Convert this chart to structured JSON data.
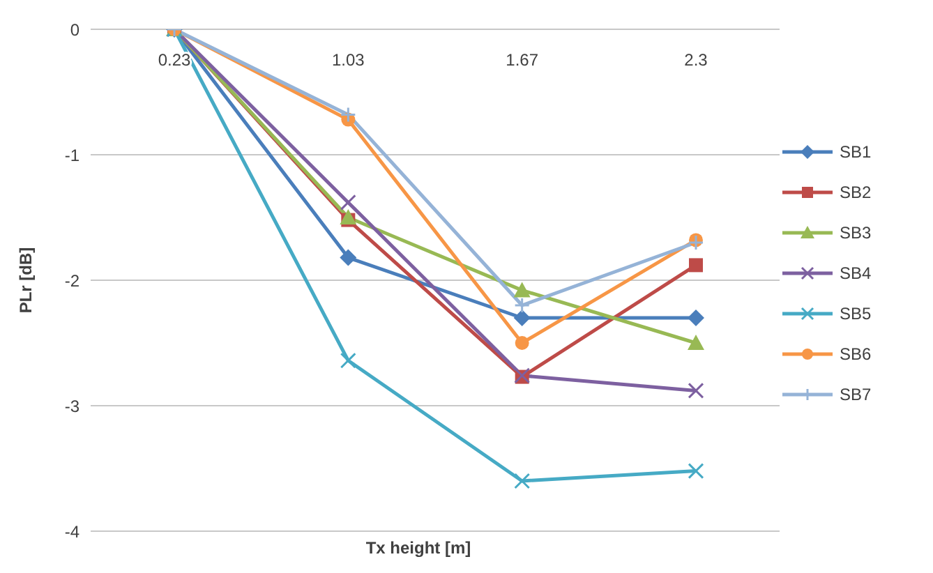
{
  "chart_data": {
    "type": "line",
    "xlabel": "Tx height [m]",
    "ylabel": "PLr [dB]",
    "categories": [
      "0.23",
      "1.03",
      "1.67",
      "2.3"
    ],
    "series": [
      {
        "name": "SB1",
        "color": "#4a7ebb",
        "marker": "diamond",
        "values": [
          0,
          -1.82,
          -2.3,
          -2.3
        ]
      },
      {
        "name": "SB2",
        "color": "#be4b48",
        "marker": "square",
        "values": [
          0,
          -1.52,
          -2.77,
          -1.88
        ]
      },
      {
        "name": "SB3",
        "color": "#98b954",
        "marker": "triangle",
        "values": [
          0,
          -1.5,
          -2.08,
          -2.5
        ]
      },
      {
        "name": "SB4",
        "color": "#7d60a0",
        "marker": "cross",
        "values": [
          0,
          -1.38,
          -2.76,
          -2.88
        ]
      },
      {
        "name": "SB5",
        "color": "#46aac5",
        "marker": "cross",
        "values": [
          0,
          -2.64,
          -3.6,
          -3.52
        ]
      },
      {
        "name": "SB6",
        "color": "#f79646",
        "marker": "circle",
        "values": [
          0,
          -0.72,
          -2.5,
          -1.68
        ]
      },
      {
        "name": "SB7",
        "color": "#95b3d7",
        "marker": "plus",
        "values": [
          0,
          -0.68,
          -2.2,
          -1.7
        ]
      }
    ],
    "ylim": [
      -4,
      0
    ],
    "yticks": [
      0,
      -1,
      -2,
      -3,
      -4
    ],
    "grid": "y",
    "legend": "right",
    "line_style": "solid"
  }
}
